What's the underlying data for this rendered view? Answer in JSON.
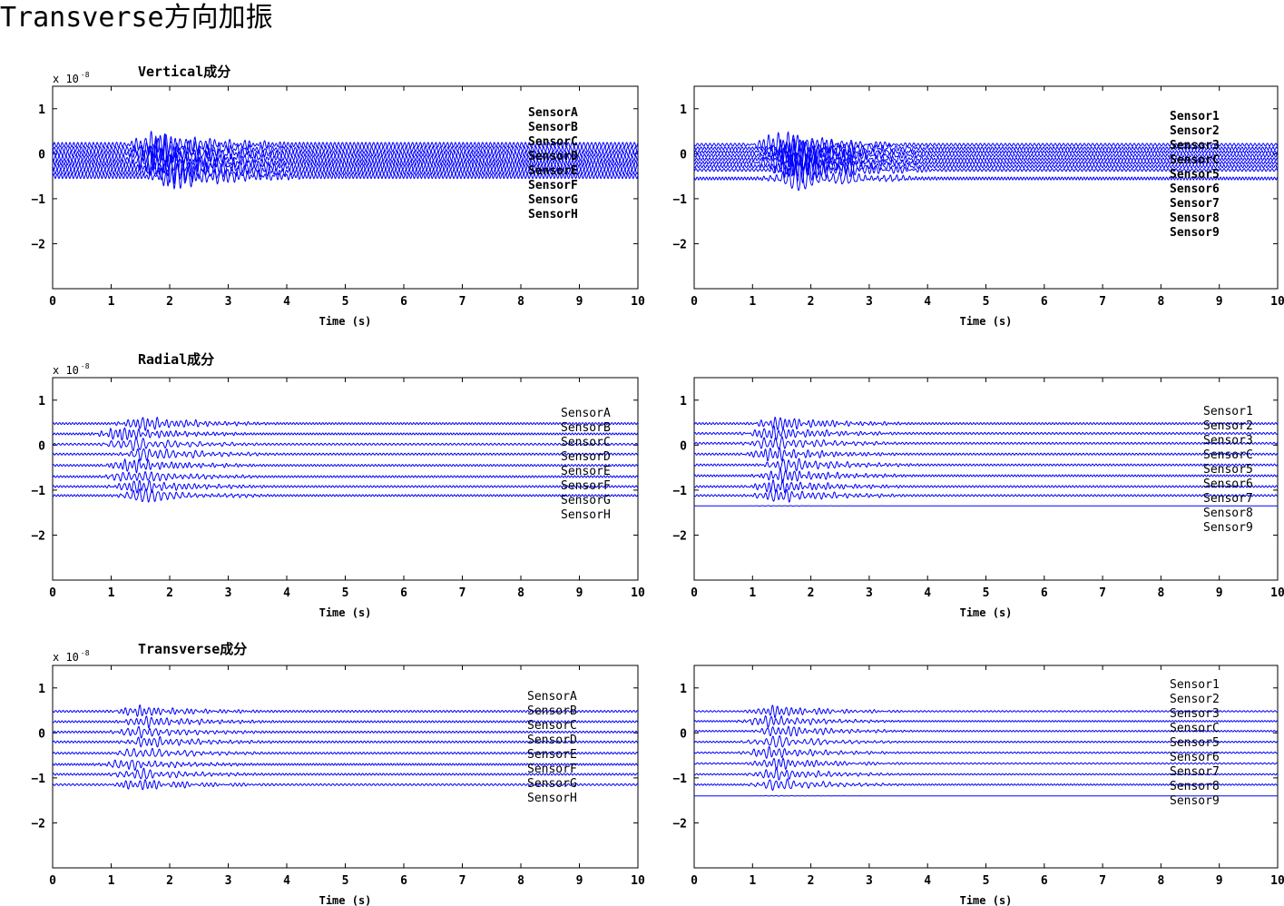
{
  "page_title": "Transverse方向加振",
  "scale_label": {
    "base": "x 10",
    "exponent": "-8"
  },
  "row_titles": [
    "Vertical成分",
    "Radial成分",
    "Transverse成分"
  ],
  "colors": {
    "trace": "#0000ff",
    "axes": "#000000"
  },
  "chart_data": [
    {
      "type": "line",
      "component": "Vertical成分",
      "group": "left",
      "xlabel": "Time (s)",
      "xlim": [
        0,
        10
      ],
      "ylim": [
        -3,
        1.5
      ],
      "xticks": [
        0,
        1,
        2,
        3,
        4,
        5,
        6,
        7,
        8,
        9,
        10
      ],
      "yticks": [
        1,
        0,
        -1,
        -2
      ],
      "legend_bold": true,
      "legend": [
        "SensorA",
        "SensorB",
        "SensorC",
        "SensorD",
        "SensorE",
        "SensorF",
        "SensorG",
        "SensorH"
      ],
      "offsets": [
        0.2,
        0.1,
        0.0,
        -0.1,
        -0.2,
        -0.3,
        -0.4,
        -0.5
      ],
      "burst_center": 1.9,
      "burst_amplitude": 0.3,
      "background_amplitude": 0.05
    },
    {
      "type": "line",
      "component": "Vertical成分",
      "group": "right",
      "xlabel": "Time (s)",
      "xlim": [
        0,
        10
      ],
      "ylim": [
        -3,
        1.5
      ],
      "xticks": [
        0,
        1,
        2,
        3,
        4,
        5,
        6,
        7,
        8,
        9,
        10
      ],
      "yticks": [
        1,
        0,
        -1,
        -2
      ],
      "legend_bold": true,
      "legend": [
        "Sensor1",
        "Sensor2",
        "Sensor3",
        "SensorC",
        "Sensor5",
        "Sensor6",
        "Sensor7",
        "Sensor8",
        "Sensor9"
      ],
      "offsets": [
        0.2,
        0.12,
        0.04,
        -0.04,
        -0.12,
        -0.2,
        -0.28,
        -0.36,
        -0.55
      ],
      "burst_center": 1.7,
      "burst_amplitude": 0.3,
      "background_amplitude": 0.03
    },
    {
      "type": "line",
      "component": "Radial成分",
      "group": "left",
      "xlabel": "Time (s)",
      "xlim": [
        0,
        10
      ],
      "ylim": [
        -3,
        1.5
      ],
      "xticks": [
        0,
        1,
        2,
        3,
        4,
        5,
        6,
        7,
        8,
        9,
        10
      ],
      "yticks": [
        1,
        0,
        -1,
        -2
      ],
      "legend_bold": false,
      "legend": [
        "SensorA",
        "SensorB",
        "SensorC",
        "SensorD",
        "SensorE",
        "SensorF",
        "SensorG",
        "SensorH"
      ],
      "offsets": [
        0.48,
        0.25,
        0.02,
        -0.2,
        -0.45,
        -0.7,
        -0.92,
        -1.12
      ],
      "burst_center": 1.4,
      "burst_amplitude": 0.15,
      "background_amplitude": 0.02
    },
    {
      "type": "line",
      "component": "Radial成分",
      "group": "right",
      "xlabel": "Time (s)",
      "xlim": [
        0,
        10
      ],
      "ylim": [
        -3,
        1.5
      ],
      "xticks": [
        0,
        1,
        2,
        3,
        4,
        5,
        6,
        7,
        8,
        9,
        10
      ],
      "yticks": [
        1,
        0,
        -1,
        -2
      ],
      "legend_bold": false,
      "legend": [
        "Sensor1",
        "Sensor2",
        "Sensor3",
        "SensorC",
        "Sensor5",
        "Sensor6",
        "Sensor7",
        "Sensor8",
        "Sensor9"
      ],
      "offsets": [
        0.48,
        0.26,
        0.04,
        -0.2,
        -0.44,
        -0.68,
        -0.92,
        -1.12,
        -1.35
      ],
      "burst_center": 1.4,
      "burst_amplitude": 0.15,
      "background_amplitude": 0.02
    },
    {
      "type": "line",
      "component": "Transverse成分",
      "group": "left",
      "xlabel": "Time (s)",
      "xlim": [
        0,
        10
      ],
      "ylim": [
        -3,
        1.5
      ],
      "xticks": [
        0,
        1,
        2,
        3,
        4,
        5,
        6,
        7,
        8,
        9,
        10
      ],
      "yticks": [
        1,
        0,
        -1,
        -2
      ],
      "legend_bold": false,
      "legend": [
        "SensorA",
        "SensorB",
        "SensorC",
        "SensorD",
        "SensorE",
        "SensorF",
        "SensorG",
        "SensorH"
      ],
      "offsets": [
        0.48,
        0.25,
        0.02,
        -0.2,
        -0.45,
        -0.7,
        -0.92,
        -1.15
      ],
      "burst_center": 1.5,
      "burst_amplitude": 0.12,
      "background_amplitude": 0.02
    },
    {
      "type": "line",
      "component": "Transverse成分",
      "group": "right",
      "xlabel": "Time (s)",
      "xlim": [
        0,
        10
      ],
      "ylim": [
        -3,
        1.5
      ],
      "xticks": [
        0,
        1,
        2,
        3,
        4,
        5,
        6,
        7,
        8,
        9,
        10
      ],
      "yticks": [
        1,
        0,
        -1,
        -2
      ],
      "legend_bold": false,
      "legend": [
        "Sensor1",
        "Sensor2",
        "Sensor3",
        "SensorC",
        "Sensor5",
        "Sensor6",
        "Sensor7",
        "Sensor8",
        "Sensor9"
      ],
      "offsets": [
        0.48,
        0.26,
        0.04,
        -0.2,
        -0.44,
        -0.68,
        -0.92,
        -1.15,
        -1.4
      ],
      "burst_center": 1.5,
      "burst_amplitude": 0.13,
      "background_amplitude": 0.015
    }
  ]
}
